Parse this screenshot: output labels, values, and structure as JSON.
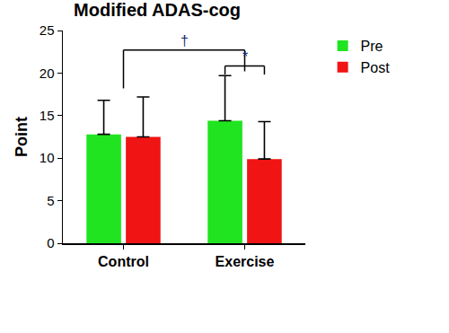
{
  "chart_data": {
    "type": "bar",
    "title": "Modified ADAS-cog",
    "y_label": "Point",
    "categories": [
      "Control",
      "Exercise"
    ],
    "series": [
      {
        "name": "Pre",
        "color": "#21e421",
        "values": [
          12.8,
          14.4
        ],
        "errors": [
          4.0,
          5.3
        ]
      },
      {
        "name": "Post",
        "color": "#f01414",
        "values": [
          12.5,
          9.9
        ],
        "errors": [
          4.7,
          4.4
        ]
      }
    ],
    "ylim": [
      0,
      25
    ],
    "yticks": [
      0,
      5,
      10,
      15,
      20,
      25
    ],
    "grid": false,
    "legend": "top right",
    "annotations": [
      {
        "text": "†",
        "between": [
          "Control",
          "Exercise"
        ]
      },
      {
        "text": "*",
        "category": "Exercise",
        "between": [
          "Pre",
          "Post"
        ]
      }
    ]
  }
}
